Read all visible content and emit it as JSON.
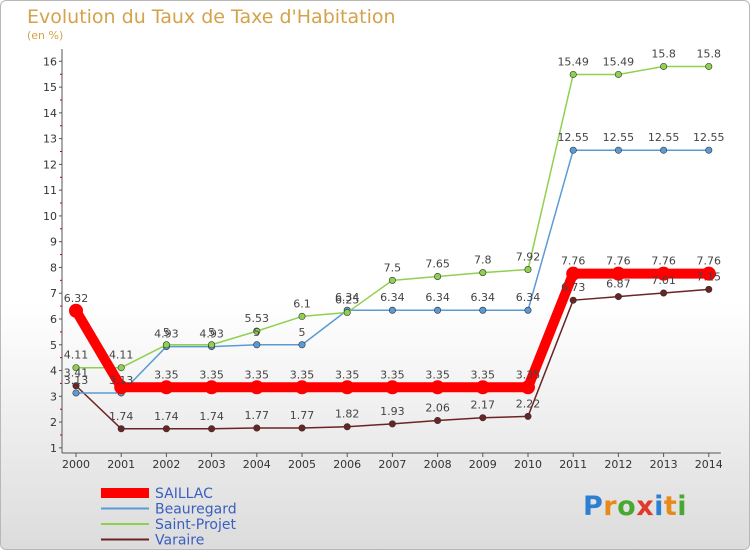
{
  "chart_data": {
    "type": "line",
    "title": "Evolution du Taux de Taxe d'Habitation",
    "subtitle": "(en %)",
    "x": [
      "2000",
      "2001",
      "2002",
      "2003",
      "2004",
      "2005",
      "2006",
      "2007",
      "2008",
      "2009",
      "2010",
      "2011",
      "2012",
      "2013",
      "2014"
    ],
    "ylim": [
      0.8,
      16.4
    ],
    "yticks": [
      1,
      2,
      3,
      4,
      5,
      6,
      7,
      8,
      9,
      10,
      11,
      12,
      13,
      14,
      15,
      16
    ],
    "grid": false,
    "legend_position": "bottom-left",
    "series": [
      {
        "name": "SAILLAC",
        "color": "#ff0000",
        "values": [
          6.32,
          3.35,
          3.35,
          3.35,
          3.35,
          3.35,
          3.35,
          3.35,
          3.35,
          3.35,
          3.35,
          7.76,
          7.76,
          7.76,
          7.76
        ],
        "labels": [
          "6.32",
          "",
          "3.35",
          "3.35",
          "3.35",
          "3.35",
          "3.35",
          "3.35",
          "3.35",
          "3.35",
          "3.35",
          "7.76",
          "7.76",
          "7.76",
          "7.76"
        ]
      },
      {
        "name": "Beauregard",
        "color": "#5b9bd5",
        "values": [
          3.13,
          3.13,
          4.93,
          4.93,
          5,
          5,
          6.34,
          6.34,
          6.34,
          6.34,
          6.34,
          12.55,
          12.55,
          12.55,
          12.55
        ],
        "labels": [
          "3.13",
          "3.13",
          "4.93",
          "4.93",
          "5",
          "5",
          "6.34",
          "6.34",
          "6.34",
          "6.34",
          "6.34",
          "12.55",
          "12.55",
          "12.55",
          "12.55"
        ]
      },
      {
        "name": "Saint-Projet",
        "color": "#8fd14f",
        "values": [
          4.11,
          4.11,
          5,
          5,
          5.53,
          6.1,
          6.25,
          7.5,
          7.65,
          7.8,
          7.92,
          15.49,
          15.49,
          15.8,
          15.8
        ],
        "labels": [
          "4.11",
          "4.11",
          "5",
          "5",
          "5.53",
          "6.1",
          "6.25",
          "7.5",
          "7.65",
          "7.8",
          "7.92",
          "15.49",
          "15.49",
          "15.8",
          "15.8"
        ]
      },
      {
        "name": "Varaire",
        "color": "#6b2424",
        "values": [
          3.41,
          1.74,
          1.74,
          1.74,
          1.77,
          1.77,
          1.82,
          1.93,
          2.06,
          2.17,
          2.22,
          6.73,
          6.87,
          7.01,
          7.15
        ],
        "labels": [
          "3.41",
          "1.74",
          "1.74",
          "1.74",
          "1.77",
          "1.77",
          "1.82",
          "1.93",
          "2.06",
          "2.17",
          "2.22",
          "6.73",
          "6.87",
          "7.01",
          "7.15"
        ]
      }
    ]
  },
  "logo": {
    "text": "Proxiti"
  }
}
